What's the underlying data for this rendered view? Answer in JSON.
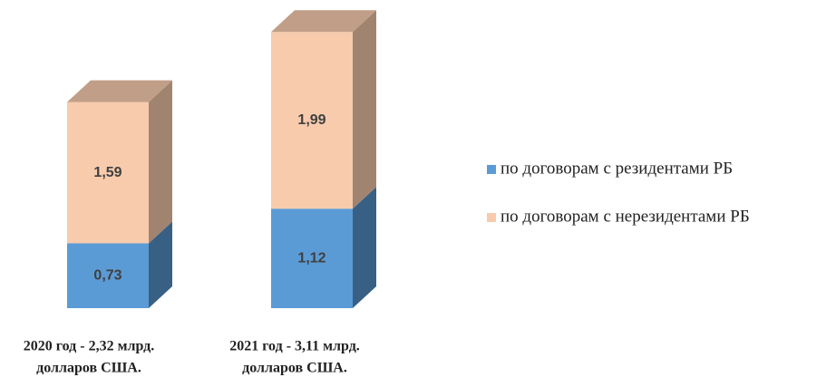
{
  "chart_data": {
    "type": "bar3d_stacked",
    "categories": [
      [
        "2020 год - 2,32 млрд.",
        "долларов США."
      ],
      [
        "2021 год - 3,11 млрд.",
        "долларов США."
      ]
    ],
    "series": [
      {
        "name": "по договорам с резидентами РБ",
        "color": "#5b9bd5",
        "values": [
          0.73,
          1.12
        ],
        "value_labels": [
          "0,73",
          "1,12"
        ]
      },
      {
        "name": "по договорам с нерезидентами РБ",
        "color": "#f8cbad",
        "values": [
          1.59,
          1.99
        ],
        "value_labels": [
          "1,59",
          "1,99"
        ]
      }
    ],
    "legend": "right"
  }
}
